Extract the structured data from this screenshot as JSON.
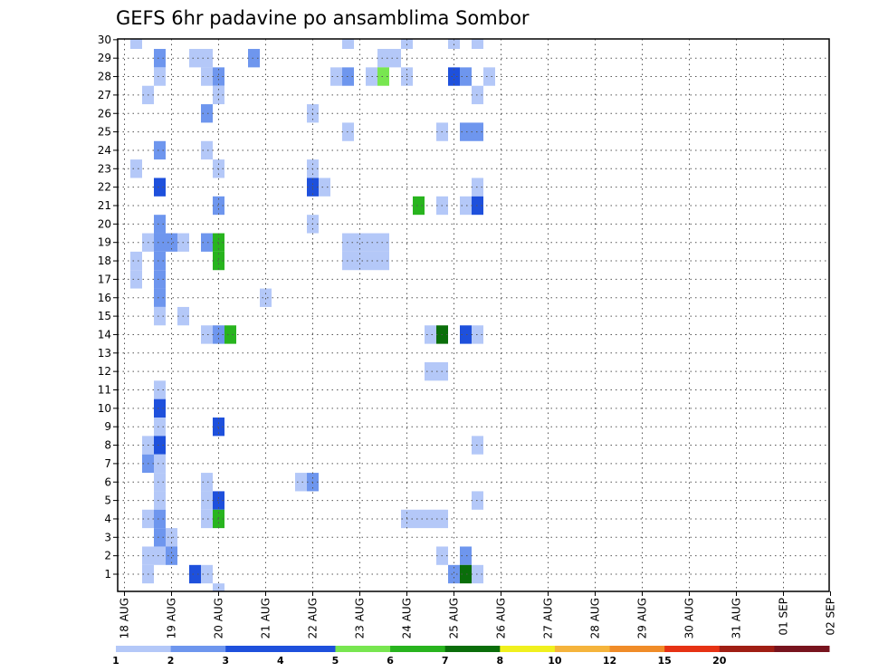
{
  "chart_data": {
    "type": "heatmap",
    "title": "GEFS 6hr padavine po ansamblima Sombor",
    "x_tick_labels": [
      "18 AUG",
      "19 AUG",
      "20 AUG",
      "21 AUG",
      "22 AUG",
      "23 AUG",
      "24 AUG",
      "25 AUG",
      "26 AUG",
      "27 AUG",
      "28 AUG",
      "29 AUG",
      "30 AUG",
      "31 AUG",
      "01 SEP",
      "02 SEP"
    ],
    "y_tick_labels": [
      "1",
      "2",
      "3",
      "4",
      "5",
      "6",
      "7",
      "8",
      "9",
      "10",
      "11",
      "12",
      "13",
      "14",
      "15",
      "16",
      "17",
      "18",
      "19",
      "20",
      "21",
      "22",
      "23",
      "24",
      "25",
      "26",
      "27",
      "28",
      "29",
      "30"
    ],
    "x_step_hours": 6,
    "ylim": [
      1,
      30
    ],
    "grid": true,
    "colorbar": {
      "labels": [
        "1",
        "2",
        "3",
        "4",
        "5",
        "6",
        "7",
        "8",
        "10",
        "12",
        "15",
        "20"
      ],
      "colors": [
        "#b4c8f8",
        "#6e96ee",
        "#1e50dc",
        "#1e50dc",
        "#78e650",
        "#28b41e",
        "#0a6e0a",
        "#f0f01e",
        "#f5b43c",
        "#f08c28",
        "#e63214",
        "#a01e14",
        "#78141e"
      ]
    },
    "precip_classes": {
      "1": "#b4c8f8",
      "2": "#6e96ee",
      "3": "#1e50dc",
      "4": "#78e650",
      "5": "#28b41e",
      "6": "#0a6e0a"
    },
    "cells": [
      [
        1,
        30,
        1
      ],
      [
        19,
        30,
        1
      ],
      [
        24,
        30,
        1
      ],
      [
        28,
        30,
        1
      ],
      [
        30,
        30,
        1
      ],
      [
        3,
        29,
        2
      ],
      [
        6,
        29,
        1
      ],
      [
        7,
        29,
        1
      ],
      [
        11,
        29,
        2
      ],
      [
        22,
        29,
        1
      ],
      [
        23,
        29,
        1
      ],
      [
        3,
        28,
        1
      ],
      [
        7,
        28,
        1
      ],
      [
        8,
        28,
        2
      ],
      [
        18,
        28,
        1
      ],
      [
        19,
        28,
        2
      ],
      [
        21,
        28,
        1
      ],
      [
        22,
        28,
        4
      ],
      [
        24,
        28,
        1
      ],
      [
        28,
        28,
        3
      ],
      [
        29,
        28,
        2
      ],
      [
        31,
        28,
        1
      ],
      [
        2,
        27,
        1
      ],
      [
        8,
        27,
        1
      ],
      [
        30,
        27,
        1
      ],
      [
        7,
        26,
        2
      ],
      [
        16,
        26,
        1
      ],
      [
        19,
        25,
        1
      ],
      [
        27,
        25,
        1
      ],
      [
        29,
        25,
        2
      ],
      [
        30,
        25,
        2
      ],
      [
        3,
        24,
        2
      ],
      [
        7,
        24,
        1
      ],
      [
        1,
        23,
        1
      ],
      [
        8,
        23,
        1
      ],
      [
        16,
        23,
        1
      ],
      [
        3,
        22,
        3
      ],
      [
        16,
        22,
        3
      ],
      [
        17,
        22,
        1
      ],
      [
        30,
        22,
        1
      ],
      [
        8,
        21,
        2
      ],
      [
        25,
        21,
        5
      ],
      [
        27,
        21,
        1
      ],
      [
        29,
        21,
        1
      ],
      [
        30,
        21,
        3
      ],
      [
        3,
        20,
        2
      ],
      [
        16,
        20,
        1
      ],
      [
        2,
        19,
        1
      ],
      [
        3,
        19,
        2
      ],
      [
        4,
        19,
        2
      ],
      [
        5,
        19,
        1
      ],
      [
        7,
        19,
        2
      ],
      [
        8,
        19,
        5
      ],
      [
        19,
        19,
        1
      ],
      [
        20,
        19,
        1
      ],
      [
        21,
        19,
        1
      ],
      [
        22,
        19,
        1
      ],
      [
        1,
        18,
        1
      ],
      [
        3,
        18,
        2
      ],
      [
        8,
        18,
        5
      ],
      [
        19,
        18,
        1
      ],
      [
        20,
        18,
        1
      ],
      [
        21,
        18,
        1
      ],
      [
        22,
        18,
        1
      ],
      [
        1,
        17,
        1
      ],
      [
        3,
        17,
        2
      ],
      [
        3,
        16,
        2
      ],
      [
        12,
        16,
        1
      ],
      [
        3,
        15,
        1
      ],
      [
        5,
        15,
        1
      ],
      [
        7,
        14,
        1
      ],
      [
        8,
        14,
        2
      ],
      [
        9,
        14,
        5
      ],
      [
        26,
        14,
        1
      ],
      [
        27,
        14,
        6
      ],
      [
        29,
        14,
        3
      ],
      [
        30,
        14,
        1
      ],
      [
        26,
        12,
        1
      ],
      [
        27,
        12,
        1
      ],
      [
        3,
        11,
        1
      ],
      [
        3,
        10,
        3
      ],
      [
        3,
        9,
        1
      ],
      [
        8,
        9,
        3
      ],
      [
        2,
        8,
        1
      ],
      [
        3,
        8,
        3
      ],
      [
        30,
        8,
        1
      ],
      [
        2,
        7,
        2
      ],
      [
        3,
        7,
        1
      ],
      [
        3,
        6,
        1
      ],
      [
        7,
        6,
        1
      ],
      [
        15,
        6,
        1
      ],
      [
        16,
        6,
        2
      ],
      [
        3,
        5,
        1
      ],
      [
        7,
        5,
        1
      ],
      [
        8,
        5,
        3
      ],
      [
        30,
        5,
        1
      ],
      [
        2,
        4,
        1
      ],
      [
        3,
        4,
        2
      ],
      [
        7,
        4,
        1
      ],
      [
        8,
        4,
        5
      ],
      [
        24,
        4,
        1
      ],
      [
        25,
        4,
        1
      ],
      [
        26,
        4,
        1
      ],
      [
        27,
        4,
        1
      ],
      [
        3,
        3,
        2
      ],
      [
        4,
        3,
        1
      ],
      [
        2,
        2,
        1
      ],
      [
        3,
        2,
        1
      ],
      [
        4,
        2,
        2
      ],
      [
        27,
        2,
        1
      ],
      [
        29,
        2,
        2
      ],
      [
        2,
        1,
        1
      ],
      [
        6,
        1,
        3
      ],
      [
        7,
        1,
        1
      ],
      [
        28,
        1,
        2
      ],
      [
        29,
        1,
        6
      ],
      [
        30,
        1,
        1
      ],
      [
        8,
        0,
        1
      ]
    ]
  }
}
